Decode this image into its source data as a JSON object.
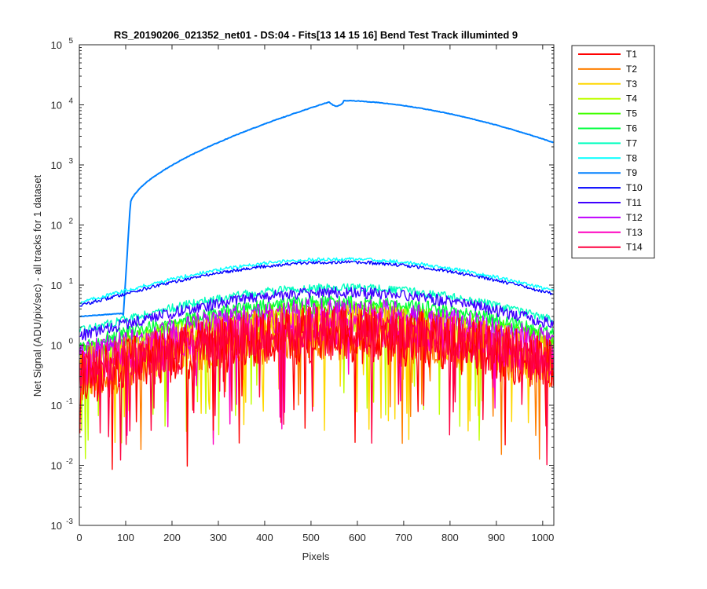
{
  "chart_data": {
    "type": "line",
    "title": "RS_20190206_021352_net01 - DS:04 - Fits[13  14  15  16]   Bend Test      Track illuminted 9",
    "xlabel": "Pixels",
    "ylabel": "Net Signal (ADU/pix/sec) - all tracks for 1 dataset",
    "xlim": [
      0,
      1024
    ],
    "ylim": [
      0.001,
      100000
    ],
    "yscale": "log",
    "grid": false,
    "legend_position": "outside-top-right",
    "x_ticks": [
      0,
      100,
      200,
      300,
      400,
      500,
      600,
      700,
      800,
      900,
      1000
    ],
    "x_tick_labels": [
      "0",
      "100",
      "200",
      "300",
      "400",
      "500",
      "600",
      "700",
      "800",
      "900",
      "1000"
    ],
    "y_ticks": [
      0.001,
      0.01,
      0.1,
      1,
      10,
      100,
      1000,
      10000,
      100000
    ],
    "y_tick_labels": [
      {
        "base": "10",
        "exp": "-3"
      },
      {
        "base": "10",
        "exp": "-2"
      },
      {
        "base": "10",
        "exp": "-1"
      },
      {
        "base": "10",
        "exp": "0"
      },
      {
        "base": "10",
        "exp": "1"
      },
      {
        "base": "10",
        "exp": "2"
      },
      {
        "base": "10",
        "exp": "3"
      },
      {
        "base": "10",
        "exp": "4"
      },
      {
        "base": "10",
        "exp": "5"
      }
    ],
    "series": [
      {
        "name": "T1",
        "color": "#ff0000",
        "peak": 1.5,
        "noise": 1.0
      },
      {
        "name": "T2",
        "color": "#ff7f00",
        "peak": 1.6,
        "noise": 0.95
      },
      {
        "name": "T3",
        "color": "#ffd700",
        "peak": 1.8,
        "noise": 0.85
      },
      {
        "name": "T4",
        "color": "#bfff00",
        "peak": 2.5,
        "noise": 0.6
      },
      {
        "name": "T5",
        "color": "#40ff00",
        "peak": 4.0,
        "noise": 0.3
      },
      {
        "name": "T6",
        "color": "#00ff3f",
        "peak": 5.2,
        "noise": 0.25
      },
      {
        "name": "T7",
        "color": "#00ffbf",
        "peak": 9.0,
        "noise": 0.15
      },
      {
        "name": "T8",
        "color": "#00ffff",
        "peak": 27.0,
        "noise": 0.06
      },
      {
        "name": "T9",
        "color": "#0080ff",
        "peak": 12000,
        "noise": 0.0
      },
      {
        "name": "T10",
        "color": "#0000ff",
        "peak": 24.0,
        "noise": 0.06
      },
      {
        "name": "T11",
        "color": "#4000ff",
        "peak": 7.5,
        "noise": 0.2
      },
      {
        "name": "T12",
        "color": "#bf00ff",
        "peak": 3.5,
        "noise": 0.5
      },
      {
        "name": "T13",
        "color": "#ff00bf",
        "peak": 2.0,
        "noise": 0.75
      },
      {
        "name": "T14",
        "color": "#ff0040",
        "peak": 1.7,
        "noise": 0.85
      }
    ]
  }
}
